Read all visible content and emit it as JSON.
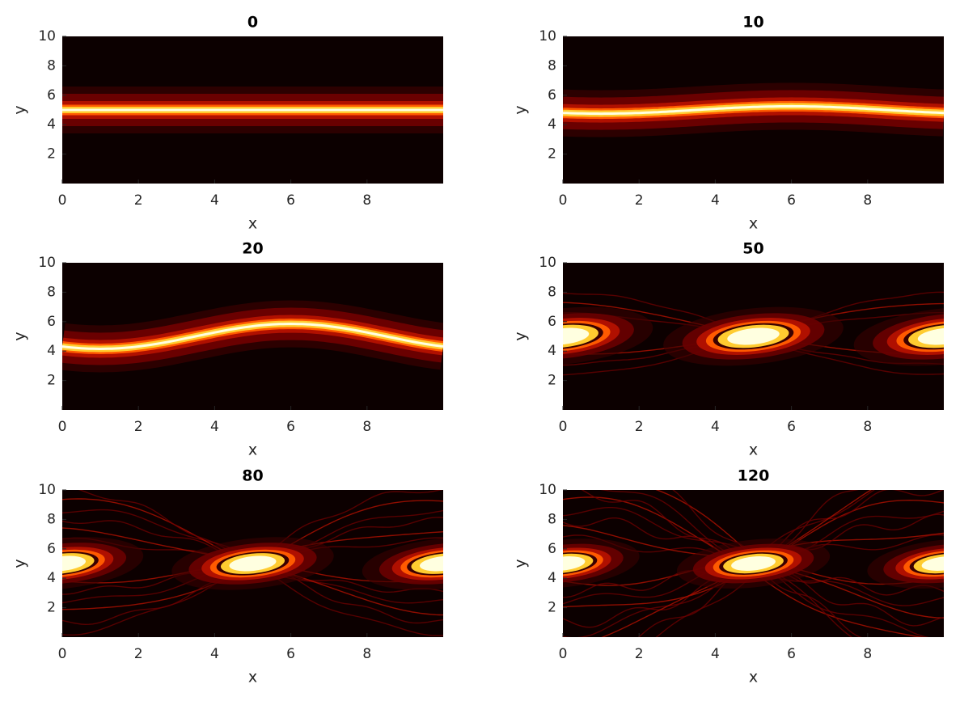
{
  "chart_data": [
    {
      "type": "heatmap",
      "title": "0",
      "x_label": "x",
      "y_label": "y",
      "xlim": [
        0,
        10
      ],
      "ylim": [
        0,
        10
      ],
      "xticks": [
        0,
        2,
        4,
        6,
        8
      ],
      "yticks": [
        2,
        4,
        6,
        8,
        10
      ],
      "colormap": "hot"
    },
    {
      "type": "heatmap",
      "title": "10",
      "x_label": "x",
      "y_label": "y",
      "xlim": [
        0,
        10
      ],
      "ylim": [
        0,
        10
      ],
      "xticks": [
        0,
        2,
        4,
        6,
        8
      ],
      "yticks": [
        2,
        4,
        6,
        8,
        10
      ],
      "colormap": "hot"
    },
    {
      "type": "heatmap",
      "title": "20",
      "x_label": "x",
      "y_label": "y",
      "xlim": [
        0,
        10
      ],
      "ylim": [
        0,
        10
      ],
      "xticks": [
        0,
        2,
        4,
        6,
        8
      ],
      "yticks": [
        2,
        4,
        6,
        8,
        10
      ],
      "colormap": "hot"
    },
    {
      "type": "heatmap",
      "title": "50",
      "x_label": "x",
      "y_label": "y",
      "xlim": [
        0,
        10
      ],
      "ylim": [
        0,
        10
      ],
      "xticks": [
        0,
        2,
        4,
        6,
        8
      ],
      "yticks": [
        2,
        4,
        6,
        8,
        10
      ],
      "colormap": "hot"
    },
    {
      "type": "heatmap",
      "title": "80",
      "x_label": "x",
      "y_label": "y",
      "xlim": [
        0,
        10
      ],
      "ylim": [
        0,
        10
      ],
      "xticks": [
        0,
        2,
        4,
        6,
        8
      ],
      "yticks": [
        2,
        4,
        6,
        8,
        10
      ],
      "colormap": "hot"
    },
    {
      "type": "heatmap",
      "title": "120",
      "x_label": "x",
      "y_label": "y",
      "xlim": [
        0,
        10
      ],
      "ylim": [
        0,
        10
      ],
      "xticks": [
        0,
        2,
        4,
        6,
        8
      ],
      "yticks": [
        2,
        4,
        6,
        8,
        10
      ],
      "colormap": "hot"
    }
  ]
}
